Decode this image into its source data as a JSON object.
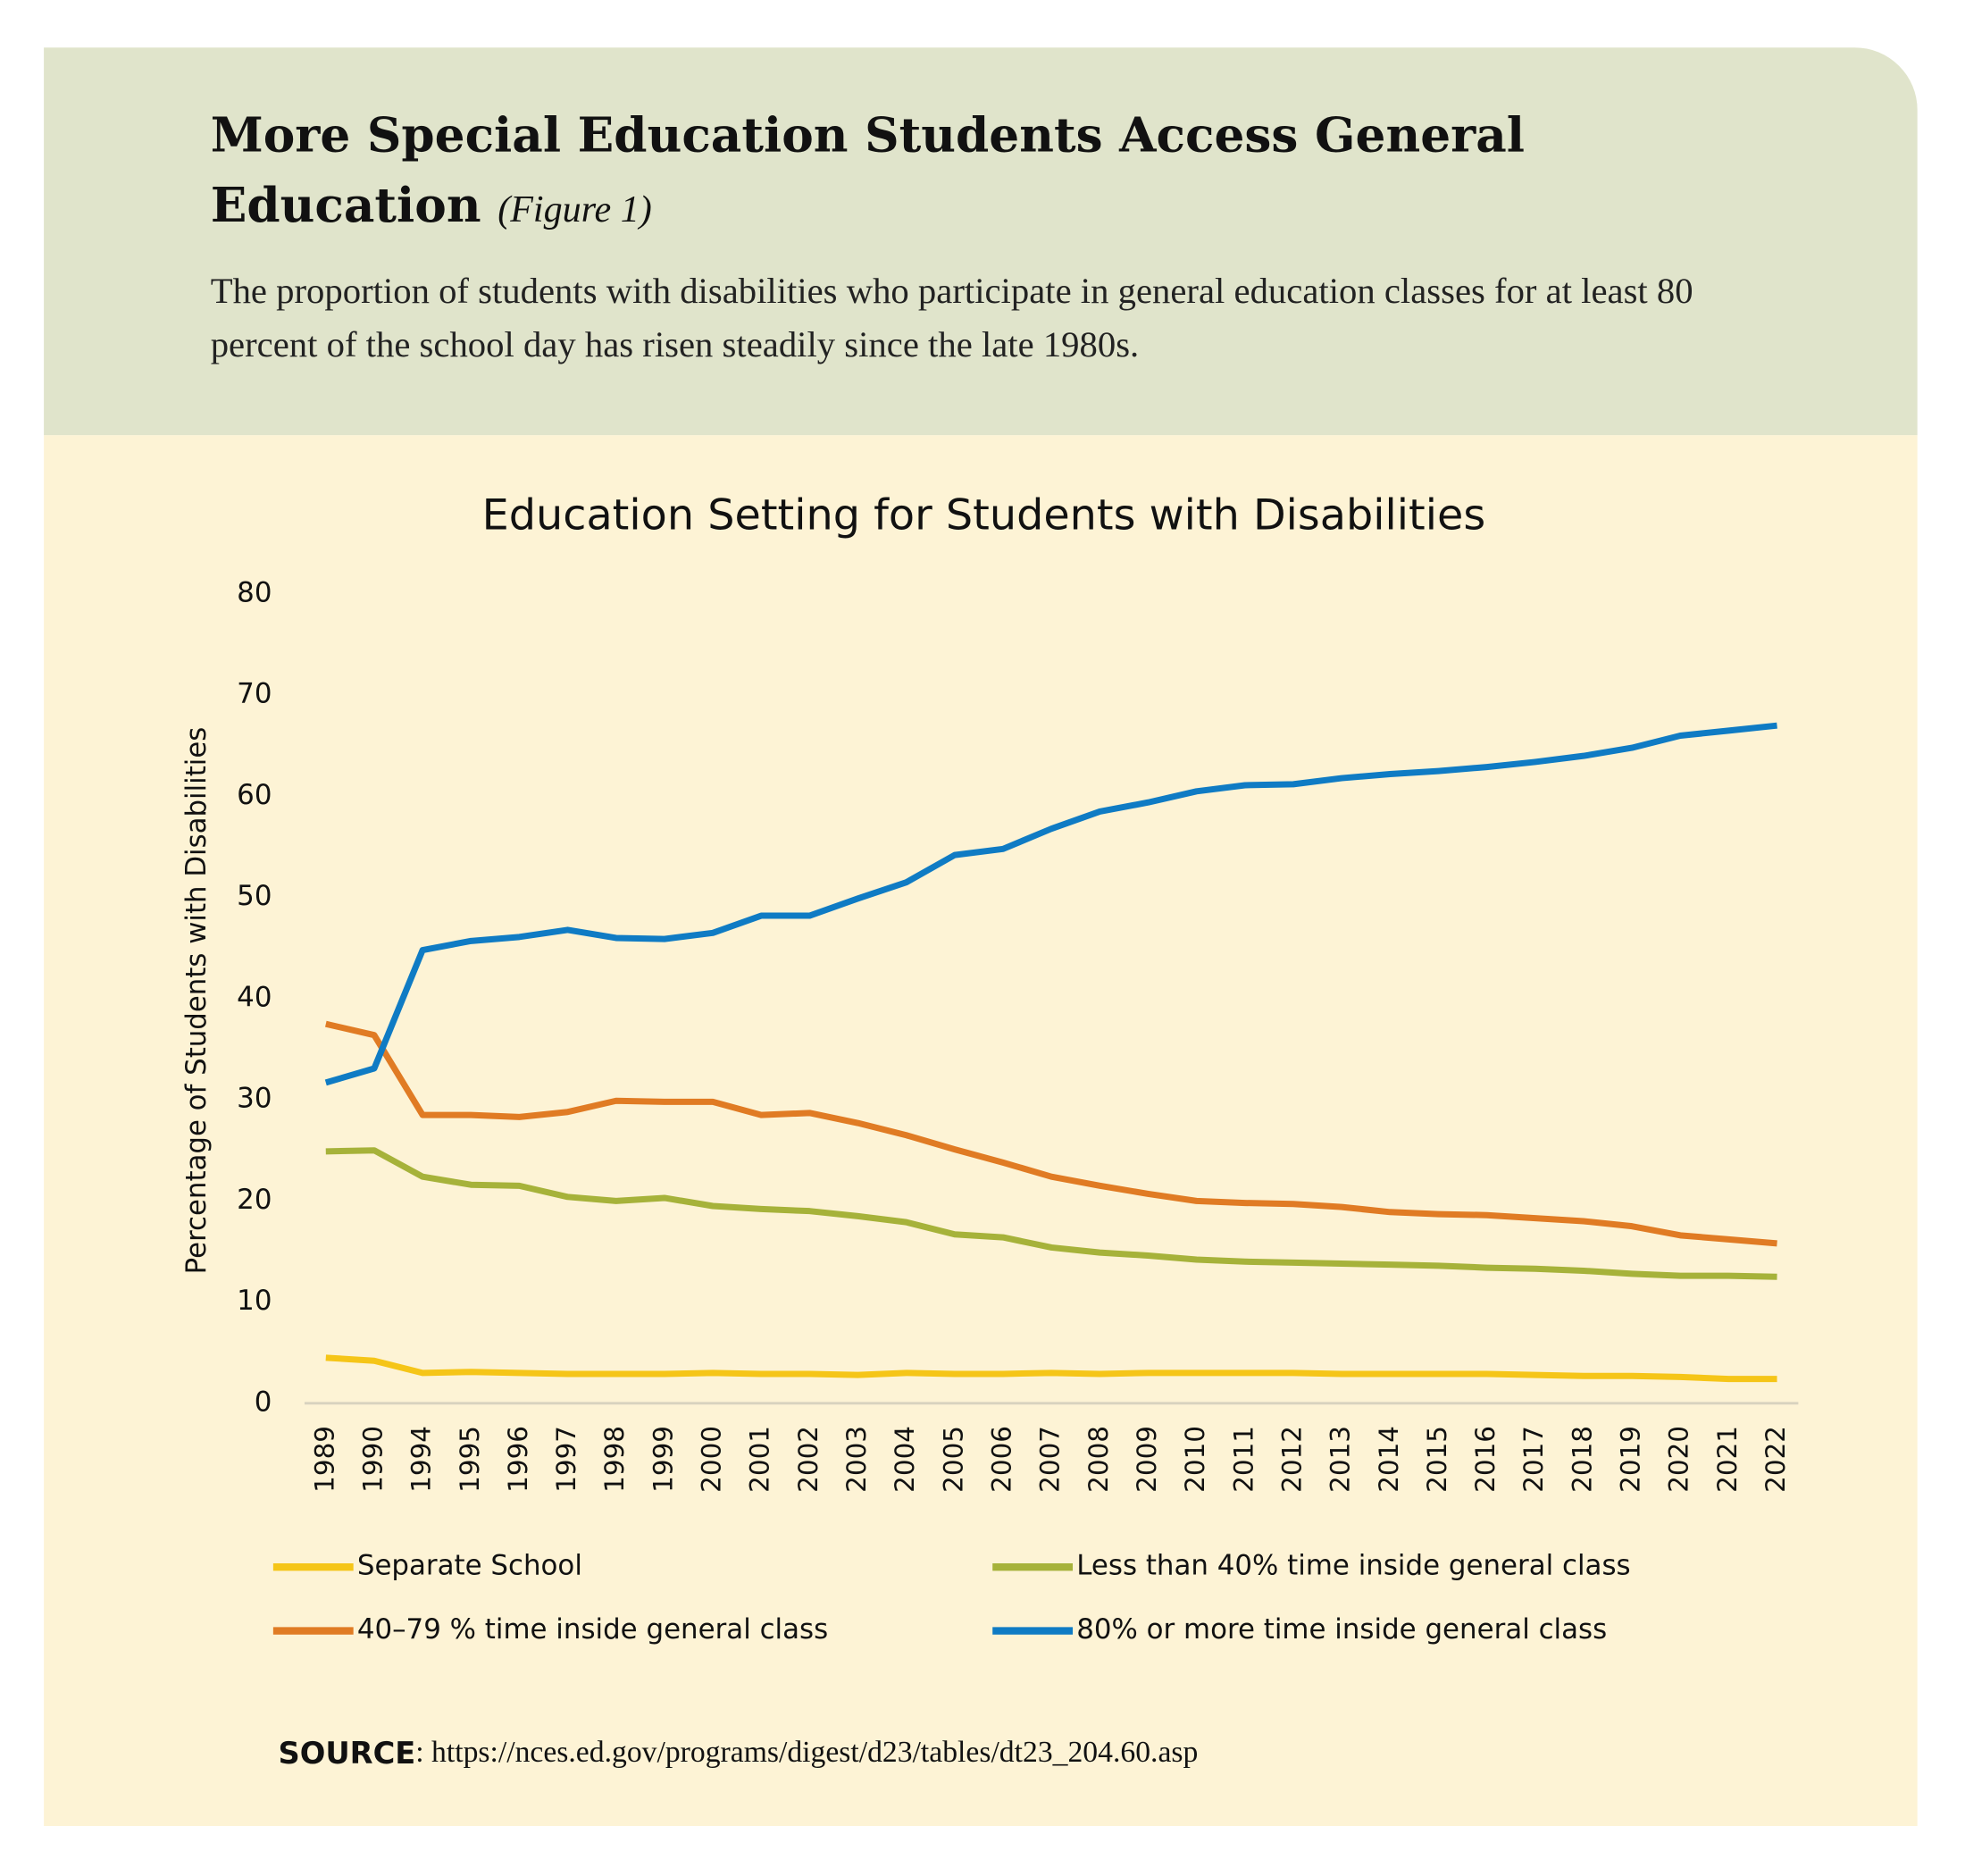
{
  "chart_data": {
    "type": "line",
    "header_title": "More Special Education Students Access General Education",
    "figure_label": "(Figure 1)",
    "subtitle": "The proportion of students with disabilities who participate in general education classes for at least 80 percent of the school day has risen steadily since the late 1980s.",
    "title": "Education Setting for Students with Disabilities",
    "y_label": "Percentage of Students with Disabilities",
    "categories": [
      "1989",
      "1990",
      "1994",
      "1995",
      "1996",
      "1997",
      "1998",
      "1999",
      "2000",
      "2001",
      "2002",
      "2003",
      "2004",
      "2005",
      "2006",
      "2007",
      "2008",
      "2009",
      "2010",
      "2011",
      "2012",
      "2013",
      "2014",
      "2015",
      "2016",
      "2017",
      "2018",
      "2019",
      "2020",
      "2021",
      "2022"
    ],
    "series": [
      {
        "name": "Separate School",
        "color": "#f5c518",
        "values": [
          4.5,
          4.2,
          3.0,
          3.1,
          3.0,
          2.9,
          2.9,
          2.9,
          3.0,
          2.9,
          2.9,
          2.8,
          3.0,
          2.9,
          2.9,
          3.0,
          2.9,
          3.0,
          3.0,
          3.0,
          3.0,
          2.9,
          2.9,
          2.9,
          2.9,
          2.8,
          2.7,
          2.7,
          2.6,
          2.4,
          2.4
        ]
      },
      {
        "name": "Less than 40% time inside general class",
        "color": "#a6b23a",
        "values": [
          24.9,
          25.0,
          22.4,
          21.6,
          21.5,
          20.4,
          20.0,
          20.3,
          19.5,
          19.2,
          19.0,
          18.5,
          17.9,
          16.7,
          16.4,
          15.4,
          14.9,
          14.6,
          14.2,
          14.0,
          13.9,
          13.8,
          13.7,
          13.6,
          13.4,
          13.3,
          13.1,
          12.8,
          12.6,
          12.6,
          12.5
        ]
      },
      {
        "name": "40–79 % time inside general class",
        "color": "#e07b24",
        "values": [
          37.5,
          36.4,
          28.5,
          28.5,
          28.3,
          28.8,
          29.9,
          29.8,
          29.8,
          28.5,
          28.7,
          27.7,
          26.5,
          25.1,
          23.8,
          22.4,
          21.5,
          20.7,
          20.0,
          19.8,
          19.7,
          19.4,
          18.9,
          18.7,
          18.6,
          18.3,
          18.0,
          17.5,
          16.6,
          16.2,
          15.8
        ]
      },
      {
        "name": "80% or more time inside general class",
        "color": "#0f7bc4",
        "values": [
          31.7,
          33.1,
          44.8,
          45.7,
          46.1,
          46.8,
          46.0,
          45.9,
          46.5,
          48.2,
          48.2,
          49.9,
          51.5,
          54.2,
          54.8,
          56.8,
          58.5,
          59.4,
          60.5,
          61.1,
          61.2,
          61.8,
          62.2,
          62.5,
          62.9,
          63.4,
          64.0,
          64.8,
          66.0,
          66.5,
          67.0
        ]
      }
    ],
    "ylim": [
      0,
      80
    ],
    "yticks": [
      0,
      10,
      20,
      30,
      40,
      50,
      60,
      70,
      80
    ],
    "grid": false,
    "source_label": "SOURCE",
    "source_text": ": https://nces.ed.gov/programs/digest/d23/tables/dt23_204.60.asp"
  }
}
